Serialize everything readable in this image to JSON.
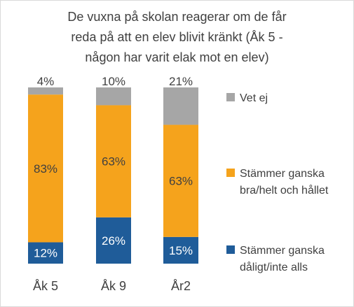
{
  "chart_data": {
    "type": "bar",
    "stacked": true,
    "title_lines": [
      "De vuxna på skolan reagerar om de får",
      "reda på att en elev blivit kränkt (Åk 5 -",
      "någon har varit elak mot en elev)"
    ],
    "categories": [
      "Åk 5",
      "Åk 9",
      "År2"
    ],
    "series": [
      {
        "name": "Stämmer ganska dåligt/inte alls",
        "values": [
          12,
          26,
          15
        ],
        "labels": [
          "12%",
          "26%",
          "15%"
        ],
        "color": "#1f5c99",
        "label_color": "#ffffff"
      },
      {
        "name": "Stämmer ganska bra/helt och hållet",
        "values": [
          83,
          63,
          63
        ],
        "labels": [
          "83%",
          "63%",
          "63%"
        ],
        "color": "#f5a31c",
        "label_color": "#404040"
      },
      {
        "name": "Vet ej",
        "values": [
          4,
          10,
          21
        ],
        "labels": [
          "4%",
          "10%",
          "21%"
        ],
        "color": "#a6a6a6",
        "label_color": "#404040"
      }
    ],
    "legend": [
      {
        "lines": [
          "Vet ej"
        ],
        "color": "#a6a6a6"
      },
      {
        "lines": [
          "Stämmer ganska",
          "bra/helt och hållet"
        ],
        "color": "#f5a31c"
      },
      {
        "lines": [
          "Stämmer ganska",
          "dåligt/inte alls"
        ],
        "color": "#1f5c99"
      }
    ],
    "legend_position": "right",
    "grid": false,
    "ylim": [
      0,
      100
    ]
  }
}
